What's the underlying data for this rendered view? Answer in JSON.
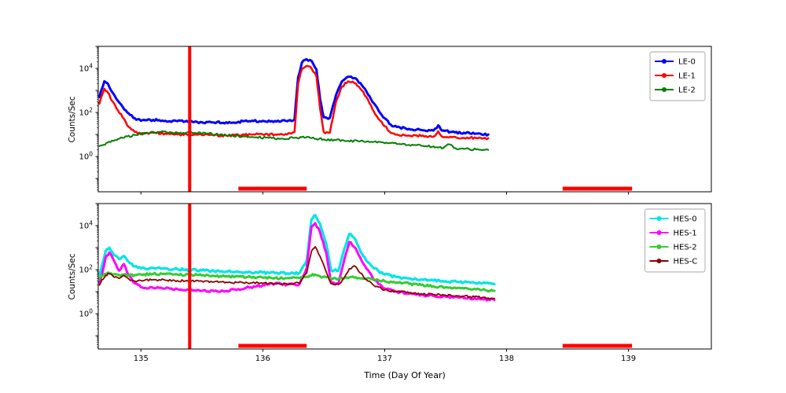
{
  "figure": {
    "xlabel": "Time (Day Of Year)",
    "annotation_color": "#ff0000"
  },
  "chart_data": [
    {
      "type": "line",
      "title": "",
      "xlabel": "",
      "ylabel": "Counts/Sec",
      "yscale": "log",
      "xlim": [
        134.65,
        139.68
      ],
      "ylim_exp": [
        -1.6,
        5
      ],
      "xticks": [
        135,
        136,
        137,
        138,
        139
      ],
      "ytick_exps": [
        0,
        2,
        4
      ],
      "show_xticklabels": false,
      "legend_loc": "upper right",
      "grid": false,
      "annotations": {
        "vline_x": 135.4,
        "hbar_segments": [
          [
            135.8,
            136.36
          ],
          [
            138.46,
            139.03
          ]
        ],
        "color": "#ff0000"
      },
      "series": [
        {
          "name": "LE-0",
          "color": "#0000ff",
          "lw": 3,
          "x": [
            134.66,
            134.68,
            134.7,
            134.73,
            134.76,
            134.8,
            134.85,
            134.9,
            134.95,
            135.0,
            135.1,
            135.2,
            135.3,
            135.4,
            135.5,
            135.6,
            135.7,
            135.8,
            135.9,
            136.0,
            136.1,
            136.2,
            136.26,
            136.29,
            136.32,
            136.36,
            136.4,
            136.44,
            136.47,
            136.5,
            136.55,
            136.6,
            136.65,
            136.7,
            136.75,
            136.8,
            136.85,
            136.9,
            136.95,
            137.0,
            137.05,
            137.1,
            137.2,
            137.3,
            137.4,
            137.44,
            137.47,
            137.55,
            137.65,
            137.75,
            137.85
          ],
          "y": [
            500,
            1200,
            2600,
            2000,
            900,
            400,
            180,
            90,
            55,
            42,
            46,
            42,
            40,
            38,
            36,
            35,
            36,
            38,
            40,
            42,
            41,
            40,
            48,
            4000,
            18000,
            26000,
            22000,
            9000,
            400,
            60,
            56,
            600,
            2600,
            4200,
            3600,
            2200,
            900,
            300,
            120,
            55,
            28,
            22,
            18,
            16,
            15,
            26,
            15,
            13,
            12,
            11,
            10
          ]
        },
        {
          "name": "LE-1",
          "color": "#ff0000",
          "lw": 2.5,
          "x": [
            134.66,
            134.68,
            134.7,
            134.73,
            134.76,
            134.8,
            134.85,
            134.9,
            134.95,
            135.0,
            135.1,
            135.2,
            135.3,
            135.4,
            135.5,
            135.6,
            135.7,
            135.8,
            135.9,
            136.0,
            136.1,
            136.2,
            136.26,
            136.29,
            136.32,
            136.36,
            136.4,
            136.44,
            136.47,
            136.5,
            136.55,
            136.6,
            136.65,
            136.7,
            136.75,
            136.8,
            136.85,
            136.9,
            136.95,
            137.0,
            137.05,
            137.1,
            137.2,
            137.3,
            137.4,
            137.44,
            137.47,
            137.55,
            137.65,
            137.75,
            137.85
          ],
          "y": [
            250,
            600,
            1200,
            800,
            350,
            150,
            60,
            22,
            13,
            11,
            12,
            11,
            10,
            10,
            9.5,
            9,
            9,
            9.5,
            10,
            10,
            10,
            10,
            13,
            2000,
            9000,
            13000,
            10000,
            4500,
            150,
            13,
            12,
            300,
            1500,
            2600,
            2200,
            1200,
            500,
            140,
            50,
            24,
            12,
            10,
            9,
            8.5,
            8,
            14,
            8,
            7.5,
            7,
            7,
            6.8
          ]
        },
        {
          "name": "LE-2",
          "color": "#007f00",
          "lw": 2,
          "x": [
            134.66,
            134.75,
            134.85,
            134.95,
            135.05,
            135.15,
            135.25,
            135.35,
            135.45,
            135.55,
            135.65,
            135.75,
            135.85,
            135.95,
            136.05,
            136.15,
            136.25,
            136.32,
            136.4,
            136.5,
            136.6,
            136.7,
            136.8,
            136.9,
            137.0,
            137.1,
            137.2,
            137.3,
            137.4,
            137.48,
            137.53,
            137.58,
            137.65,
            137.75,
            137.85
          ],
          "y": [
            3,
            4.5,
            7,
            9.5,
            11.5,
            13,
            12.5,
            12,
            11.5,
            11,
            10,
            9,
            8,
            7.5,
            7,
            6.5,
            7,
            7.5,
            6.8,
            6,
            5.5,
            5.2,
            5,
            4.5,
            4,
            3.7,
            3.4,
            3.1,
            2.9,
            2.4,
            3.6,
            2.4,
            2.2,
            2.1,
            2
          ]
        }
      ]
    },
    {
      "type": "line",
      "title": "",
      "xlabel": "Time (Day Of Year)",
      "ylabel": "Counts/Sec",
      "yscale": "log",
      "xlim": [
        134.65,
        139.68
      ],
      "ylim_exp": [
        -1.6,
        5
      ],
      "xticks": [
        135,
        136,
        137,
        138,
        139
      ],
      "ytick_exps": [
        0,
        2,
        4
      ],
      "show_xticklabels": true,
      "legend_loc": "upper right",
      "grid": false,
      "annotations": {
        "vline_x": 135.4,
        "hbar_segments": [
          [
            135.8,
            136.36
          ],
          [
            138.46,
            139.03
          ]
        ],
        "color": "#ff0000"
      },
      "series": [
        {
          "name": "HES-0",
          "color": "#00e5e5",
          "lw": 3.2,
          "x": [
            134.66,
            134.68,
            134.71,
            134.74,
            134.78,
            134.82,
            134.86,
            134.9,
            134.95,
            135.0,
            135.1,
            135.2,
            135.3,
            135.4,
            135.5,
            135.6,
            135.7,
            135.8,
            135.9,
            136.0,
            136.1,
            136.2,
            136.3,
            136.36,
            136.4,
            136.43,
            136.47,
            136.52,
            136.56,
            136.62,
            136.67,
            136.71,
            136.75,
            136.8,
            136.85,
            136.9,
            136.95,
            137.0,
            137.1,
            137.2,
            137.3,
            137.4,
            137.5,
            137.6,
            137.7,
            137.8,
            137.9
          ],
          "y": [
            60,
            150,
            700,
            1000,
            450,
            300,
            420,
            220,
            140,
            115,
            120,
            112,
            105,
            98,
            92,
            87,
            82,
            79,
            76,
            73,
            70,
            68,
            70,
            250,
            20000,
            30000,
            12000,
            1500,
            95,
            90,
            900,
            4200,
            2800,
            700,
            250,
            130,
            85,
            60,
            46,
            40,
            36,
            32,
            30,
            28,
            26,
            24,
            22
          ]
        },
        {
          "name": "HES-1",
          "color": "#ff00ff",
          "lw": 3,
          "x": [
            134.66,
            134.68,
            134.71,
            134.74,
            134.78,
            134.82,
            134.86,
            134.9,
            134.95,
            135.0,
            135.1,
            135.2,
            135.3,
            135.4,
            135.5,
            135.6,
            135.7,
            135.8,
            135.9,
            136.0,
            136.1,
            136.2,
            136.3,
            136.36,
            136.4,
            136.43,
            136.47,
            136.52,
            136.56,
            136.62,
            136.67,
            136.71,
            136.75,
            136.8,
            136.85,
            136.9,
            136.95,
            137.0,
            137.1,
            137.2,
            137.3,
            137.4,
            137.5,
            137.6,
            137.7,
            137.8,
            137.9
          ],
          "y": [
            25,
            60,
            350,
            600,
            250,
            90,
            180,
            55,
            24,
            16,
            15,
            14,
            13,
            12,
            11,
            10.5,
            11,
            13,
            16,
            20,
            24,
            21,
            22,
            120,
            9000,
            13000,
            5000,
            600,
            26,
            23,
            300,
            1800,
            1100,
            350,
            110,
            45,
            22,
            14,
            10,
            8,
            7,
            6.5,
            6,
            5.5,
            5,
            4.6,
            4.2
          ]
        },
        {
          "name": "HES-2",
          "color": "#32cd32",
          "lw": 3,
          "x": [
            134.66,
            134.68,
            134.71,
            134.74,
            134.78,
            134.82,
            134.86,
            134.9,
            134.95,
            135.0,
            135.1,
            135.2,
            135.3,
            135.4,
            135.5,
            135.6,
            135.7,
            135.8,
            135.9,
            136.0,
            136.1,
            136.2,
            136.3,
            136.36,
            136.4,
            136.43,
            136.47,
            136.52,
            136.56,
            136.62,
            136.67,
            136.71,
            136.75,
            136.8,
            136.85,
            136.9,
            136.95,
            137.0,
            137.1,
            137.2,
            137.3,
            137.4,
            137.5,
            137.6,
            137.7,
            137.8,
            137.9
          ],
          "y": [
            40,
            55,
            65,
            70,
            62,
            57,
            60,
            55,
            57,
            60,
            64,
            62,
            60,
            58,
            55,
            52,
            50,
            48,
            46,
            44,
            42,
            41,
            42,
            48,
            55,
            60,
            50,
            45,
            40,
            39,
            42,
            45,
            44,
            40,
            38,
            36,
            33,
            30,
            26,
            23,
            20,
            18,
            16,
            15,
            13,
            12,
            11
          ]
        },
        {
          "name": "HES-C",
          "color": "#8b0000",
          "lw": 1.8,
          "x": [
            134.66,
            134.68,
            134.71,
            134.74,
            134.78,
            134.82,
            134.86,
            134.9,
            134.95,
            135.0,
            135.1,
            135.2,
            135.3,
            135.4,
            135.5,
            135.6,
            135.7,
            135.8,
            135.9,
            136.0,
            136.1,
            136.2,
            136.3,
            136.36,
            136.4,
            136.43,
            136.47,
            136.52,
            136.56,
            136.62,
            136.67,
            136.71,
            136.75,
            136.8,
            136.85,
            136.9,
            136.95,
            137.0,
            137.1,
            137.2,
            137.3,
            137.4,
            137.5,
            137.6,
            137.7,
            137.8,
            137.9
          ],
          "y": [
            20,
            35,
            55,
            65,
            45,
            40,
            55,
            38,
            30,
            32,
            35,
            33,
            32,
            30,
            30,
            28,
            27,
            26,
            25,
            24,
            23,
            22,
            24,
            70,
            700,
            1100,
            400,
            80,
            23,
            21,
            45,
            110,
            150,
            70,
            35,
            22,
            16,
            12,
            10,
            9,
            8,
            7.5,
            7,
            6.5,
            6,
            5.5,
            5
          ]
        }
      ]
    }
  ]
}
